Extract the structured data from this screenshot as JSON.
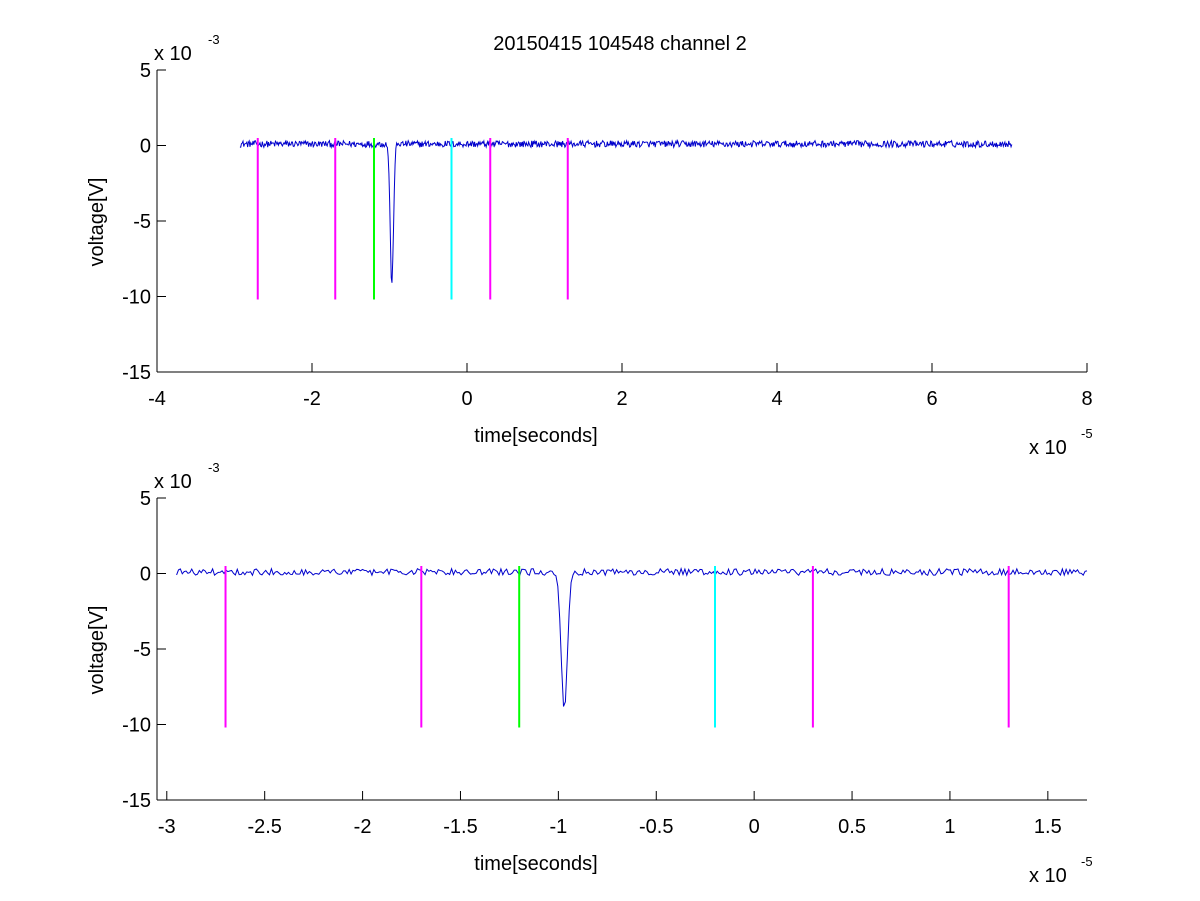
{
  "figure_title": "20150415 104548 channel 2",
  "chart_data": [
    {
      "type": "line",
      "panel": "overview",
      "title": "20150415 104548 channel 2",
      "xlabel": "time[seconds]",
      "ylabel": "voltage[V]",
      "x_multiplier_label": "x 10",
      "x_multiplier_exp": "-5",
      "y_multiplier_label": "x 10",
      "y_multiplier_exp": "-3",
      "xlim": [
        -4,
        8
      ],
      "ylim": [
        -15,
        5
      ],
      "x_ticks": [
        -4,
        -2,
        0,
        2,
        4,
        6,
        8
      ],
      "x_tick_labels": [
        "-4",
        "-2",
        "0",
        "2",
        "4",
        "6",
        "8"
      ],
      "y_ticks": [
        5,
        0,
        -5,
        -10,
        -15
      ],
      "y_tick_labels": [
        "5",
        "0",
        "-5",
        "-10",
        "-15"
      ],
      "grid": false,
      "series": [
        {
          "color": "#0000cc",
          "x_range": [
            -2.93,
            7.03
          ],
          "baseline": 0.1,
          "noise": 0.22,
          "samples": 1000,
          "pulse": {
            "center": -0.97,
            "min": -9.3,
            "width": 0.03
          }
        }
      ],
      "markers": [
        {
          "x": -2.7,
          "y_top": 0.5,
          "y_bottom": -10.2,
          "color": "#ff00ff"
        },
        {
          "x": -1.7,
          "y_top": 0.5,
          "y_bottom": -10.2,
          "color": "#ff00ff"
        },
        {
          "x": -1.2,
          "y_top": 0.5,
          "y_bottom": -10.2,
          "color": "#00ff00"
        },
        {
          "x": -0.2,
          "y_top": 0.5,
          "y_bottom": -10.2,
          "color": "#00ffff"
        },
        {
          "x": 0.3,
          "y_top": 0.5,
          "y_bottom": -10.2,
          "color": "#ff00ff"
        },
        {
          "x": 1.3,
          "y_top": 0.5,
          "y_bottom": -10.2,
          "color": "#ff00ff"
        }
      ]
    },
    {
      "type": "line",
      "panel": "zoom",
      "title": "",
      "xlabel": "time[seconds]",
      "ylabel": "voltage[V]",
      "x_multiplier_label": "x 10",
      "x_multiplier_exp": "-5",
      "y_multiplier_label": "x 10",
      "y_multiplier_exp": "-3",
      "xlim": [
        -3.05,
        1.7
      ],
      "ylim": [
        -15,
        5
      ],
      "x_ticks": [
        -3,
        -2.5,
        -2,
        -1.5,
        -1,
        -0.5,
        0,
        0.5,
        1,
        1.5
      ],
      "x_tick_labels": [
        "-3",
        "-2.5",
        "-2",
        "-1.5",
        "-1",
        "-0.5",
        "0",
        "0.5",
        "1",
        "1.5"
      ],
      "y_ticks": [
        5,
        0,
        -5,
        -10,
        -15
      ],
      "y_tick_labels": [
        "5",
        "0",
        "-5",
        "-10",
        "-15"
      ],
      "grid": false,
      "series": [
        {
          "color": "#0000cc",
          "x_range": [
            -2.95,
            1.7
          ],
          "baseline": 0.1,
          "noise": 0.22,
          "samples": 480,
          "pulse": {
            "center": -0.97,
            "min": -9.2,
            "width": 0.022
          }
        }
      ],
      "markers": [
        {
          "x": -2.7,
          "y_top": 0.5,
          "y_bottom": -10.2,
          "color": "#ff00ff"
        },
        {
          "x": -1.7,
          "y_top": 0.5,
          "y_bottom": -10.2,
          "color": "#ff00ff"
        },
        {
          "x": -1.2,
          "y_top": 0.5,
          "y_bottom": -10.2,
          "color": "#00ff00"
        },
        {
          "x": -0.2,
          "y_top": 0.5,
          "y_bottom": -10.2,
          "color": "#00ffff"
        },
        {
          "x": 0.3,
          "y_top": 0.5,
          "y_bottom": -10.2,
          "color": "#ff00ff"
        },
        {
          "x": 1.3,
          "y_top": 0.5,
          "y_bottom": -10.2,
          "color": "#ff00ff"
        }
      ]
    }
  ]
}
